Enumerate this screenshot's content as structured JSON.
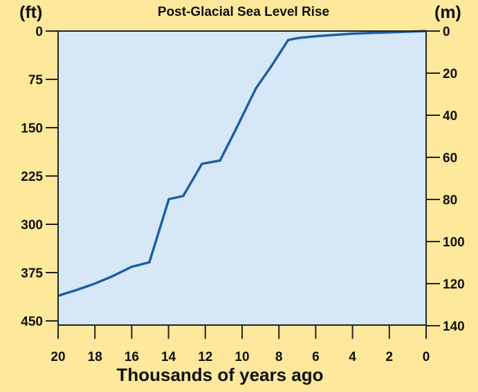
{
  "chart_data": {
    "type": "line",
    "title": "Post-Glacial Sea Level Rise",
    "xlabel": "Thousands of years ago",
    "ylabel_left": "(ft)",
    "ylabel_right": "(m)",
    "xlim": [
      20,
      0
    ],
    "ylim_left": [
      0,
      450
    ],
    "ylim_right": [
      0,
      140
    ],
    "y_inverted": true,
    "x_ticks": [
      20,
      18,
      16,
      14,
      12,
      10,
      8,
      6,
      4,
      2,
      0
    ],
    "y_ticks_left": [
      0,
      75,
      150,
      225,
      300,
      375,
      450
    ],
    "y_ticks_right": [
      0,
      20,
      40,
      60,
      80,
      100,
      120,
      140
    ],
    "grid": false,
    "colors": {
      "background": "#fde89b",
      "plot_area": "#d6e8f8",
      "line": "#1f5fa0",
      "axis": "#222222"
    },
    "series": [
      {
        "x": [
          20,
          19,
          18,
          17,
          16.5,
          16,
          15.04,
          13.98,
          13.2,
          12.18,
          11.2,
          10.4,
          9.25,
          8.4,
          7.5,
          7,
          6,
          5,
          4,
          3,
          2,
          1,
          0
        ],
        "y": [
          411,
          402,
          392,
          380,
          373,
          366,
          359,
          261,
          256,
          206,
          201,
          156,
          89,
          54,
          14,
          11,
          8,
          6,
          4,
          3,
          2,
          1,
          0
        ]
      }
    ]
  }
}
